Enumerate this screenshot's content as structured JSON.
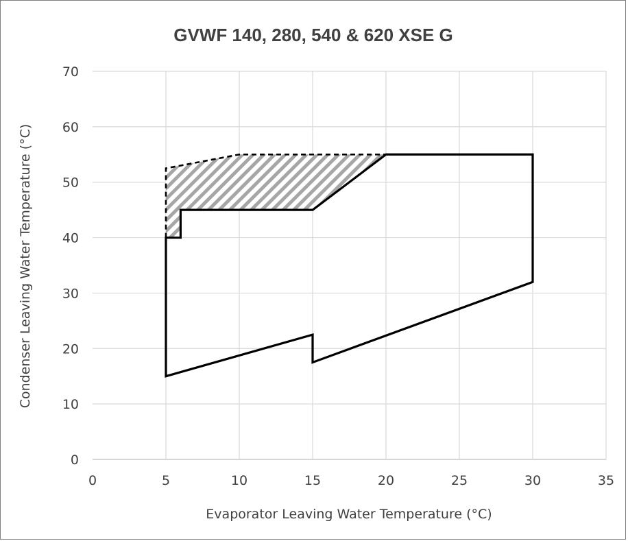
{
  "chart_data": {
    "type": "line",
    "title": "GVWF 140, 280, 540 & 620 XSE G",
    "xlabel": "Evaporator Leaving Water Temperature (°C)",
    "ylabel": "Condenser Leaving Water Temperature (°C)",
    "xlim": [
      0,
      35
    ],
    "ylim": [
      0,
      70
    ],
    "xticks": [
      0,
      5,
      10,
      15,
      20,
      25,
      30,
      35
    ],
    "yticks": [
      0,
      10,
      20,
      30,
      40,
      50,
      60,
      70
    ],
    "grid": true,
    "legend": "none",
    "series": [
      {
        "style": "solid",
        "x": [
          5,
          5,
          6,
          6,
          15,
          20,
          30,
          30,
          15,
          15,
          5
        ],
        "y": [
          15,
          40,
          40,
          45,
          45,
          55,
          55,
          32,
          17.5,
          22.5,
          15
        ]
      },
      {
        "style": "dashed",
        "x": [
          5,
          5,
          10,
          20
        ],
        "y": [
          40,
          52.5,
          55,
          55
        ]
      },
      {
        "style": "hatched-area",
        "x": [
          5,
          5,
          10,
          20,
          15,
          6,
          6,
          5
        ],
        "y": [
          40,
          52.5,
          55,
          55,
          45,
          45,
          40,
          40
        ]
      }
    ]
  }
}
